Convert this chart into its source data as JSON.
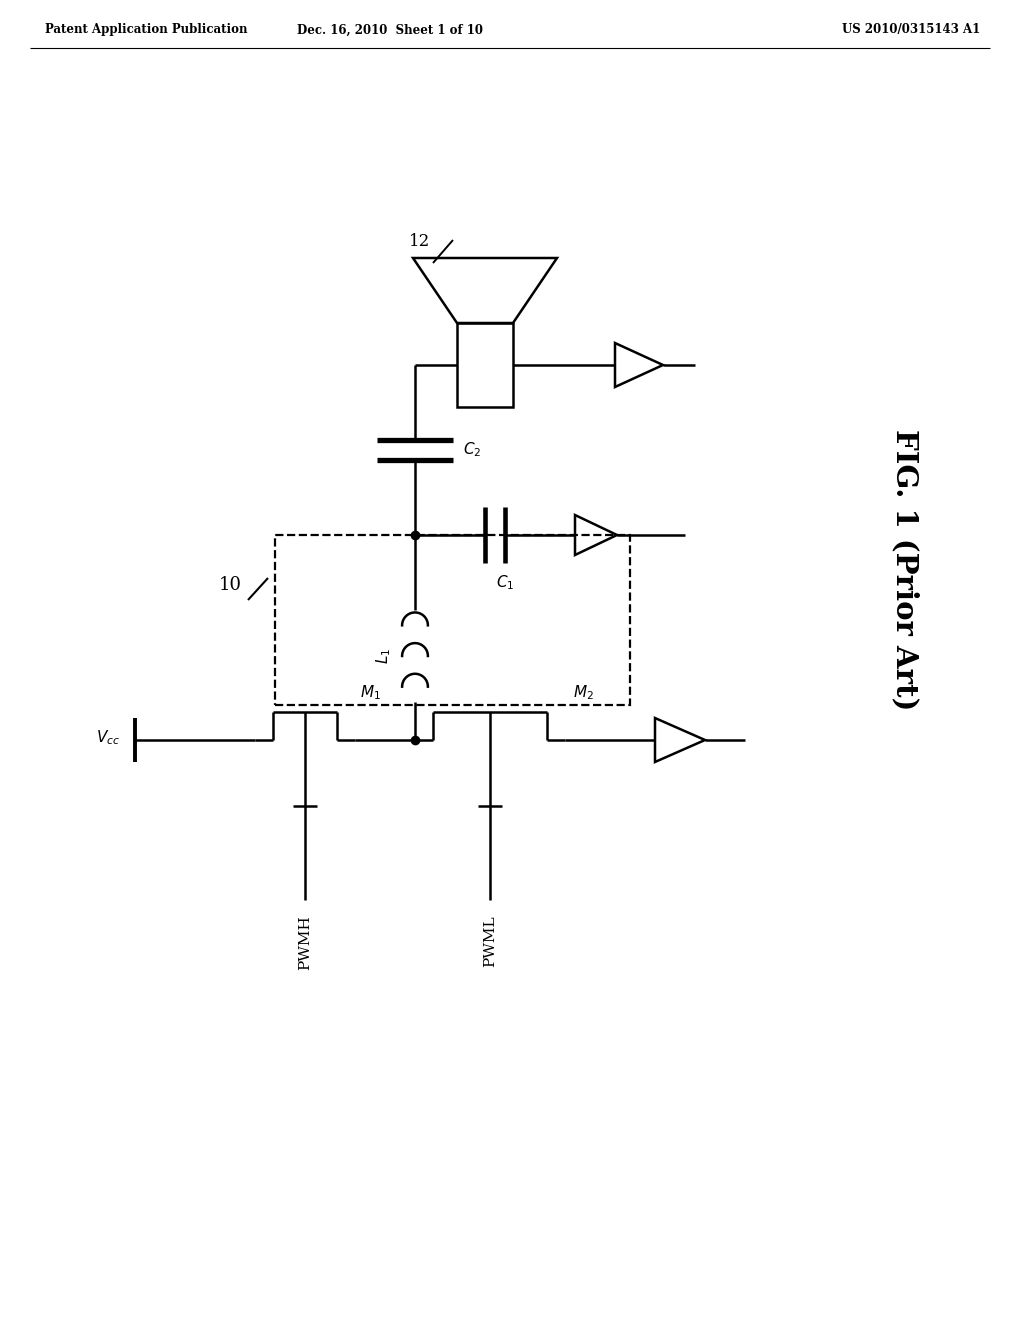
{
  "title": "FIG. 1 (Prior Art)",
  "header_left": "Patent Application Publication",
  "header_center": "Dec. 16, 2010  Sheet 1 of 10",
  "header_right": "US 2010/0315143 A1",
  "bg_color": "#ffffff",
  "line_color": "#000000",
  "label_10": "10",
  "label_12": "12",
  "label_Vcc": "$V_{cc}$",
  "label_PWMH": "PWMH",
  "label_PWML": "PWML",
  "label_M1": "$M_1$",
  "label_M2": "$M_2$",
  "label_L1": "$L_1$",
  "label_C1": "$C_1$",
  "label_C2": "$C_2$"
}
